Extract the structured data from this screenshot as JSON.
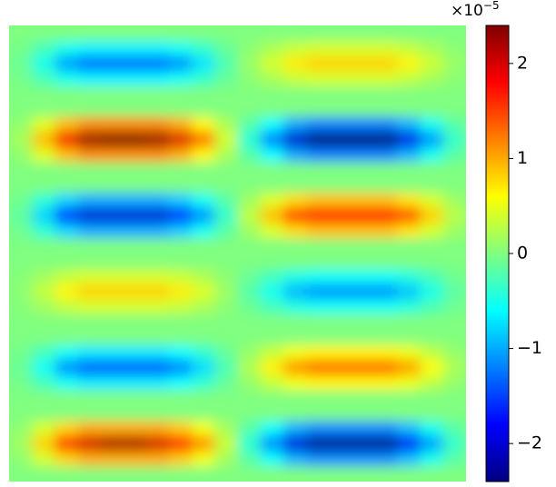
{
  "chart_data": {
    "type": "heatmap",
    "colormap": "jet",
    "zlim": [
      -2.4,
      2.4
    ],
    "colorbar": {
      "ticks": [
        {
          "value": -2,
          "label": "−2"
        },
        {
          "value": -1,
          "label": "−1"
        },
        0,
        1,
        2
      ],
      "offset_base": "×10",
      "offset_exponent": "−5"
    },
    "z": [
      [
        0,
        0,
        0,
        0,
        0,
        0,
        0,
        0,
        0,
        0,
        0,
        0,
        0,
        0,
        0,
        0,
        0,
        0,
        0,
        0
      ],
      [
        -0.05,
        -0.26,
        -0.52,
        -0.65,
        -0.65,
        -0.65,
        -0.65,
        -0.55,
        -0.36,
        -0.12,
        0.06,
        0.2,
        0.34,
        0.4,
        0.4,
        0.4,
        0.4,
        0.32,
        0.18,
        0.06
      ],
      [
        -0.1,
        -0.52,
        -1.04,
        -1.3,
        -1.3,
        -1.3,
        -1.3,
        -1.11,
        -0.72,
        -0.24,
        0.12,
        0.4,
        0.68,
        0.8,
        0.8,
        0.8,
        0.8,
        0.64,
        0.36,
        0.12
      ],
      [
        -0.05,
        -0.26,
        -0.52,
        -0.65,
        -0.65,
        -0.65,
        -0.65,
        -0.55,
        -0.36,
        -0.12,
        0.06,
        0.2,
        0.34,
        0.4,
        0.4,
        0.4,
        0.4,
        0.32,
        0.18,
        0.06
      ],
      [
        0,
        0,
        0,
        0,
        0,
        0,
        0,
        0,
        0,
        0,
        0,
        0,
        0,
        0,
        0,
        0,
        0,
        0,
        0,
        0
      ],
      [
        0,
        0,
        0,
        0,
        0,
        0,
        0,
        0,
        0,
        0,
        0,
        0,
        0,
        0,
        0,
        0,
        0,
        0,
        0,
        0
      ],
      [
        0.09,
        0.46,
        0.92,
        1.15,
        1.15,
        1.15,
        1.15,
        0.98,
        0.63,
        0.2,
        -0.2,
        -0.6,
        -1.02,
        -1.2,
        -1.2,
        -1.2,
        -1.2,
        -0.96,
        -0.54,
        -0.18
      ],
      [
        0.18,
        0.92,
        1.84,
        2.3,
        2.4,
        2.4,
        2.3,
        1.96,
        1.27,
        0.39,
        -0.41,
        -1.2,
        -2.04,
        -2.4,
        -2.4,
        -2.4,
        -2.4,
        -1.92,
        -1.08,
        -0.36
      ],
      [
        0.09,
        0.46,
        0.92,
        1.15,
        1.15,
        1.15,
        1.15,
        0.98,
        0.63,
        0.2,
        -0.2,
        -0.6,
        -1.02,
        -1.2,
        -1.2,
        -1.2,
        -1.2,
        -0.96,
        -0.54,
        -0.18
      ],
      [
        0,
        0,
        0,
        0,
        0,
        0,
        0,
        0,
        0,
        0,
        0,
        0,
        0,
        0,
        0,
        0,
        0,
        0,
        0,
        0
      ],
      [
        0,
        0,
        0,
        0,
        0,
        0,
        0,
        0,
        0,
        0,
        0,
        0,
        0,
        0,
        0,
        0,
        0,
        0,
        0,
        0
      ],
      [
        -0.08,
        -0.4,
        -0.8,
        -1.0,
        -1.0,
        -1.0,
        -1.0,
        -0.85,
        -0.55,
        -0.18,
        0.15,
        0.45,
        0.77,
        0.9,
        0.9,
        0.9,
        0.9,
        0.72,
        0.41,
        0.14
      ],
      [
        -0.16,
        -0.8,
        -1.6,
        -2.0,
        -2.0,
        -2.0,
        -2.0,
        -1.7,
        -1.1,
        -0.35,
        0.3,
        0.9,
        1.53,
        1.8,
        1.8,
        1.8,
        1.8,
        1.44,
        0.81,
        0.27
      ],
      [
        -0.08,
        -0.4,
        -0.8,
        -1.0,
        -1.0,
        -1.0,
        -1.0,
        -0.85,
        -0.55,
        -0.18,
        0.15,
        0.45,
        0.77,
        0.9,
        0.9,
        0.9,
        0.9,
        0.72,
        0.41,
        0.14
      ],
      [
        0,
        0,
        0,
        0,
        0,
        0,
        0,
        0,
        0,
        0,
        0,
        0,
        0,
        0,
        0,
        0,
        0,
        0,
        0,
        0
      ],
      [
        0,
        0,
        0,
        0,
        0,
        0,
        0,
        0,
        0,
        0,
        0,
        0,
        0,
        0,
        0,
        0,
        0,
        0,
        0,
        0
      ],
      [
        0.03,
        0.16,
        0.32,
        0.4,
        0.4,
        0.4,
        0.4,
        0.34,
        0.22,
        0.06,
        -0.1,
        -0.28,
        -0.47,
        -0.55,
        -0.55,
        -0.55,
        -0.55,
        -0.44,
        -0.25,
        -0.08
      ],
      [
        0.06,
        0.32,
        0.64,
        0.8,
        0.8,
        0.8,
        0.8,
        0.68,
        0.44,
        0.13,
        -0.2,
        -0.55,
        -0.94,
        -1.1,
        -1.1,
        -1.1,
        -1.1,
        -0.88,
        -0.5,
        -0.17
      ],
      [
        0.03,
        0.16,
        0.32,
        0.4,
        0.4,
        0.4,
        0.4,
        0.34,
        0.22,
        0.06,
        -0.1,
        -0.28,
        -0.47,
        -0.55,
        -0.55,
        -0.55,
        -0.55,
        -0.44,
        -0.25,
        -0.08
      ],
      [
        0,
        0,
        0,
        0,
        0,
        0,
        0,
        0,
        0,
        0,
        0,
        0,
        0,
        0,
        0,
        0,
        0,
        0,
        0,
        0
      ],
      [
        0,
        0,
        0,
        0,
        0,
        0,
        0,
        0,
        0,
        0,
        0,
        0,
        0,
        0,
        0,
        0,
        0,
        0,
        0,
        0
      ],
      [
        -0.06,
        -0.28,
        -0.56,
        -0.7,
        -0.7,
        -0.7,
        -0.7,
        -0.6,
        -0.39,
        -0.12,
        0.11,
        0.33,
        0.55,
        0.65,
        0.65,
        0.65,
        0.65,
        0.52,
        0.3,
        0.1
      ],
      [
        -0.11,
        -0.56,
        -1.12,
        -1.4,
        -1.4,
        -1.4,
        -1.4,
        -1.19,
        -0.77,
        -0.24,
        0.22,
        0.65,
        1.1,
        1.3,
        1.3,
        1.3,
        1.3,
        1.04,
        0.59,
        0.2
      ],
      [
        -0.06,
        -0.28,
        -0.56,
        -0.7,
        -0.7,
        -0.7,
        -0.7,
        -0.6,
        -0.39,
        -0.12,
        0.11,
        0.33,
        0.55,
        0.65,
        0.65,
        0.65,
        0.65,
        0.52,
        0.3,
        0.1
      ],
      [
        0,
        0,
        0,
        0,
        0,
        0,
        0,
        0,
        0,
        0,
        0,
        0,
        0,
        0,
        0,
        0,
        0,
        0,
        0,
        0
      ],
      [
        0,
        0,
        0,
        0,
        0,
        0,
        0,
        0,
        0,
        0,
        0,
        0,
        0,
        0,
        0,
        0,
        0,
        0,
        0,
        0
      ],
      [
        0.08,
        0.4,
        0.8,
        1.0,
        1.0,
        1.0,
        1.0,
        0.85,
        0.55,
        0.17,
        -0.2,
        -0.58,
        -0.98,
        -1.15,
        -1.15,
        -1.15,
        -1.15,
        -0.92,
        -0.52,
        -0.18
      ],
      [
        0.16,
        0.8,
        1.6,
        2.0,
        2.2,
        2.2,
        2.0,
        1.7,
        1.1,
        0.33,
        -0.4,
        -1.15,
        -1.96,
        -2.3,
        -2.3,
        -2.3,
        -2.3,
        -1.84,
        -1.04,
        -0.35
      ],
      [
        0.08,
        0.4,
        0.8,
        1.0,
        1.0,
        1.0,
        1.0,
        0.85,
        0.55,
        0.17,
        -0.2,
        -0.58,
        -0.98,
        -1.15,
        -1.15,
        -1.15,
        -1.15,
        -0.92,
        -0.52,
        -0.18
      ],
      [
        0,
        0,
        0,
        0,
        0,
        0,
        0,
        0,
        0,
        0,
        0,
        0,
        0,
        0,
        0,
        0,
        0,
        0,
        0,
        0
      ]
    ]
  }
}
